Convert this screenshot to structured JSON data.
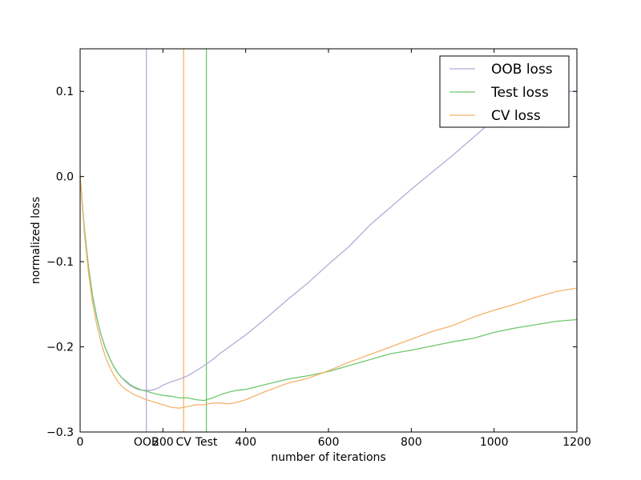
{
  "chart_data": {
    "type": "line",
    "title": "",
    "xlabel": "number of iterations",
    "ylabel": "normalized loss",
    "xlim": [
      0,
      1200
    ],
    "ylim": [
      -0.3,
      0.15
    ],
    "xticks": [
      {
        "value": 0,
        "label": "0"
      },
      {
        "value": 200,
        "label": "200"
      },
      {
        "value": 400,
        "label": "400"
      },
      {
        "value": 600,
        "label": "600"
      },
      {
        "value": 800,
        "label": "800"
      },
      {
        "value": 1000,
        "label": "1000"
      },
      {
        "value": 1200,
        "label": "1200"
      }
    ],
    "yticks": [
      {
        "value": -0.3,
        "label": "−0.3"
      },
      {
        "value": -0.2,
        "label": "−0.2"
      },
      {
        "value": -0.1,
        "label": "−0.1"
      },
      {
        "value": 0.0,
        "label": "0.0"
      },
      {
        "value": 0.1,
        "label": "0.1"
      }
    ],
    "grid": false,
    "legend_position": "top-right",
    "series": [
      {
        "name": "OOB loss",
        "color": "#b8a9d6",
        "x": [
          0,
          10,
          20,
          30,
          40,
          50,
          60,
          70,
          80,
          90,
          100,
          110,
          120,
          130,
          140,
          150,
          160,
          170,
          180,
          190,
          200,
          220,
          240,
          260,
          280,
          300,
          320,
          340,
          360,
          380,
          400,
          450,
          500,
          550,
          600,
          650,
          700,
          750,
          800,
          850,
          900,
          950,
          1000,
          1050,
          1100,
          1150,
          1200
        ],
        "y": [
          0.0,
          -0.06,
          -0.105,
          -0.14,
          -0.165,
          -0.185,
          -0.2,
          -0.212,
          -0.222,
          -0.23,
          -0.236,
          -0.241,
          -0.245,
          -0.248,
          -0.25,
          -0.251,
          -0.251,
          -0.251,
          -0.25,
          -0.248,
          -0.245,
          -0.241,
          -0.238,
          -0.234,
          -0.228,
          -0.222,
          -0.215,
          -0.207,
          -0.2,
          -0.193,
          -0.186,
          -0.166,
          -0.145,
          -0.125,
          -0.103,
          -0.082,
          -0.057,
          -0.036,
          -0.015,
          0.005,
          0.025,
          0.046,
          0.067,
          0.088,
          0.1,
          0.1,
          0.1
        ]
      },
      {
        "name": "Test loss",
        "color": "#6ec86e",
        "x": [
          0,
          10,
          20,
          30,
          40,
          50,
          60,
          70,
          80,
          90,
          100,
          110,
          120,
          130,
          140,
          150,
          160,
          180,
          200,
          220,
          240,
          260,
          280,
          300,
          320,
          340,
          360,
          380,
          400,
          450,
          500,
          550,
          600,
          650,
          700,
          750,
          800,
          850,
          900,
          950,
          1000,
          1050,
          1100,
          1150,
          1200
        ],
        "y": [
          0.0,
          -0.06,
          -0.105,
          -0.14,
          -0.165,
          -0.185,
          -0.2,
          -0.212,
          -0.222,
          -0.23,
          -0.236,
          -0.24,
          -0.244,
          -0.247,
          -0.249,
          -0.251,
          -0.252,
          -0.255,
          -0.257,
          -0.258,
          -0.26,
          -0.26,
          -0.262,
          -0.263,
          -0.26,
          -0.256,
          -0.253,
          -0.251,
          -0.25,
          -0.244,
          -0.238,
          -0.234,
          -0.229,
          -0.222,
          -0.215,
          -0.208,
          -0.204,
          -0.199,
          -0.194,
          -0.19,
          -0.183,
          -0.178,
          -0.174,
          -0.17,
          -0.168
        ]
      },
      {
        "name": "CV loss",
        "color": "#f5b36b",
        "x": [
          0,
          10,
          20,
          30,
          40,
          50,
          60,
          70,
          80,
          90,
          100,
          110,
          120,
          130,
          140,
          150,
          160,
          180,
          200,
          220,
          240,
          260,
          280,
          300,
          320,
          340,
          360,
          380,
          400,
          450,
          500,
          550,
          600,
          650,
          700,
          750,
          800,
          850,
          900,
          950,
          1000,
          1050,
          1100,
          1150,
          1200
        ],
        "y": [
          0.0,
          -0.065,
          -0.112,
          -0.148,
          -0.174,
          -0.194,
          -0.21,
          -0.222,
          -0.232,
          -0.24,
          -0.246,
          -0.25,
          -0.253,
          -0.256,
          -0.258,
          -0.26,
          -0.262,
          -0.265,
          -0.268,
          -0.271,
          -0.272,
          -0.27,
          -0.268,
          -0.268,
          -0.266,
          -0.266,
          -0.267,
          -0.265,
          -0.262,
          -0.252,
          -0.243,
          -0.237,
          -0.228,
          -0.218,
          -0.209,
          -0.2,
          -0.191,
          -0.182,
          -0.175,
          -0.165,
          -0.157,
          -0.15,
          -0.142,
          -0.135,
          -0.131
        ]
      }
    ],
    "vlines": [
      {
        "x": 160,
        "color": "#b8a9d6",
        "label": "OOB"
      },
      {
        "x": 250,
        "color": "#f5b36b",
        "label": "CV"
      },
      {
        "x": 305,
        "color": "#6ec86e",
        "label": "Test"
      }
    ]
  }
}
